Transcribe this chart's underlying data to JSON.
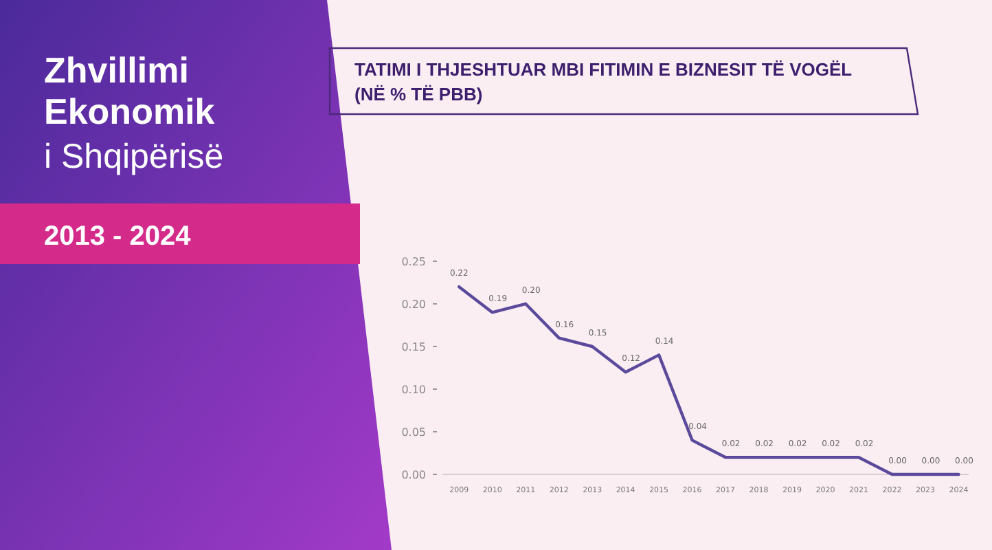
{
  "chart_data": {
    "type": "line",
    "title": "TATIMI I THJESHTUAR MBI FITIMIN E BIZNESIT TË VOGËL (NË % TË PBB)",
    "annotations": [
      "Zhvillimi Ekonomik",
      "i Shqipërisë",
      "2013 - 2024"
    ],
    "x": [
      2009,
      2010,
      2011,
      2012,
      2013,
      2014,
      2015,
      2016,
      2017,
      2018,
      2019,
      2020,
      2021,
      2022,
      2023,
      2024
    ],
    "series": [
      {
        "color": "#5b4a9b",
        "values": [
          0.22,
          0.19,
          0.2,
          0.16,
          0.15,
          0.12,
          0.14,
          0.04,
          0.02,
          0.02,
          0.02,
          0.02,
          0.02,
          0.0,
          0.0,
          0.0
        ],
        "value_labels": [
          "0.22",
          "0.19",
          "0.20",
          "0.16",
          "0.15",
          "0.12",
          "0.14",
          "0.04",
          "0.02",
          "0.02",
          "0.02",
          "0.02",
          "0.02",
          "0.00",
          "0.00",
          "0.00"
        ]
      }
    ],
    "xlim": [
      2008.5,
      2024.3
    ],
    "xticks": [
      2009,
      2010,
      2011,
      2012,
      2013,
      2014,
      2015,
      2016,
      2017,
      2018,
      2019,
      2020,
      2021,
      2022,
      2023,
      2024
    ],
    "ylim": [
      0,
      0.25
    ],
    "yticks": [
      {
        "value": 0,
        "label": "0.00"
      },
      {
        "value": 0.05,
        "label": "0.05"
      },
      {
        "value": 0.1,
        "label": "0.10"
      },
      {
        "value": 0.15,
        "label": "0.15"
      },
      {
        "value": 0.2,
        "label": "0.20"
      },
      {
        "value": 0.25,
        "label": "0.25"
      }
    ],
    "grid": false,
    "marker": "none",
    "line_style": "solid"
  }
}
